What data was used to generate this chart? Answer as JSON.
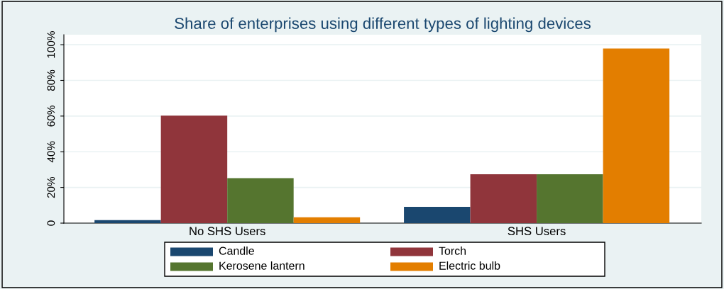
{
  "chart_data": {
    "type": "bar",
    "title": "Share of enterprises using different types of lighting devices",
    "categories": [
      "No SHS Users",
      "SHS Users"
    ],
    "series": [
      {
        "name": "Candle",
        "color": "#1a476f",
        "values": [
          1.7,
          9.1
        ]
      },
      {
        "name": "Torch",
        "color": "#90353b",
        "values": [
          60.2,
          27.4
        ]
      },
      {
        "name": "Kerosene lantern",
        "color": "#55752f",
        "values": [
          25.2,
          27.4
        ]
      },
      {
        "name": "Electric bulb",
        "color": "#e37e00",
        "values": [
          3.3,
          97.9
        ]
      }
    ],
    "ylim": [
      0,
      105.6
    ],
    "yticks": [
      0,
      {
        "value": 20,
        "label": "20%"
      },
      {
        "value": 40,
        "label": "40%"
      },
      {
        "value": 60,
        "label": "60%"
      },
      {
        "value": 80,
        "label": "80%"
      },
      {
        "value": 100,
        "label": "100%"
      }
    ],
    "grid": "y",
    "legend": "bottom"
  }
}
